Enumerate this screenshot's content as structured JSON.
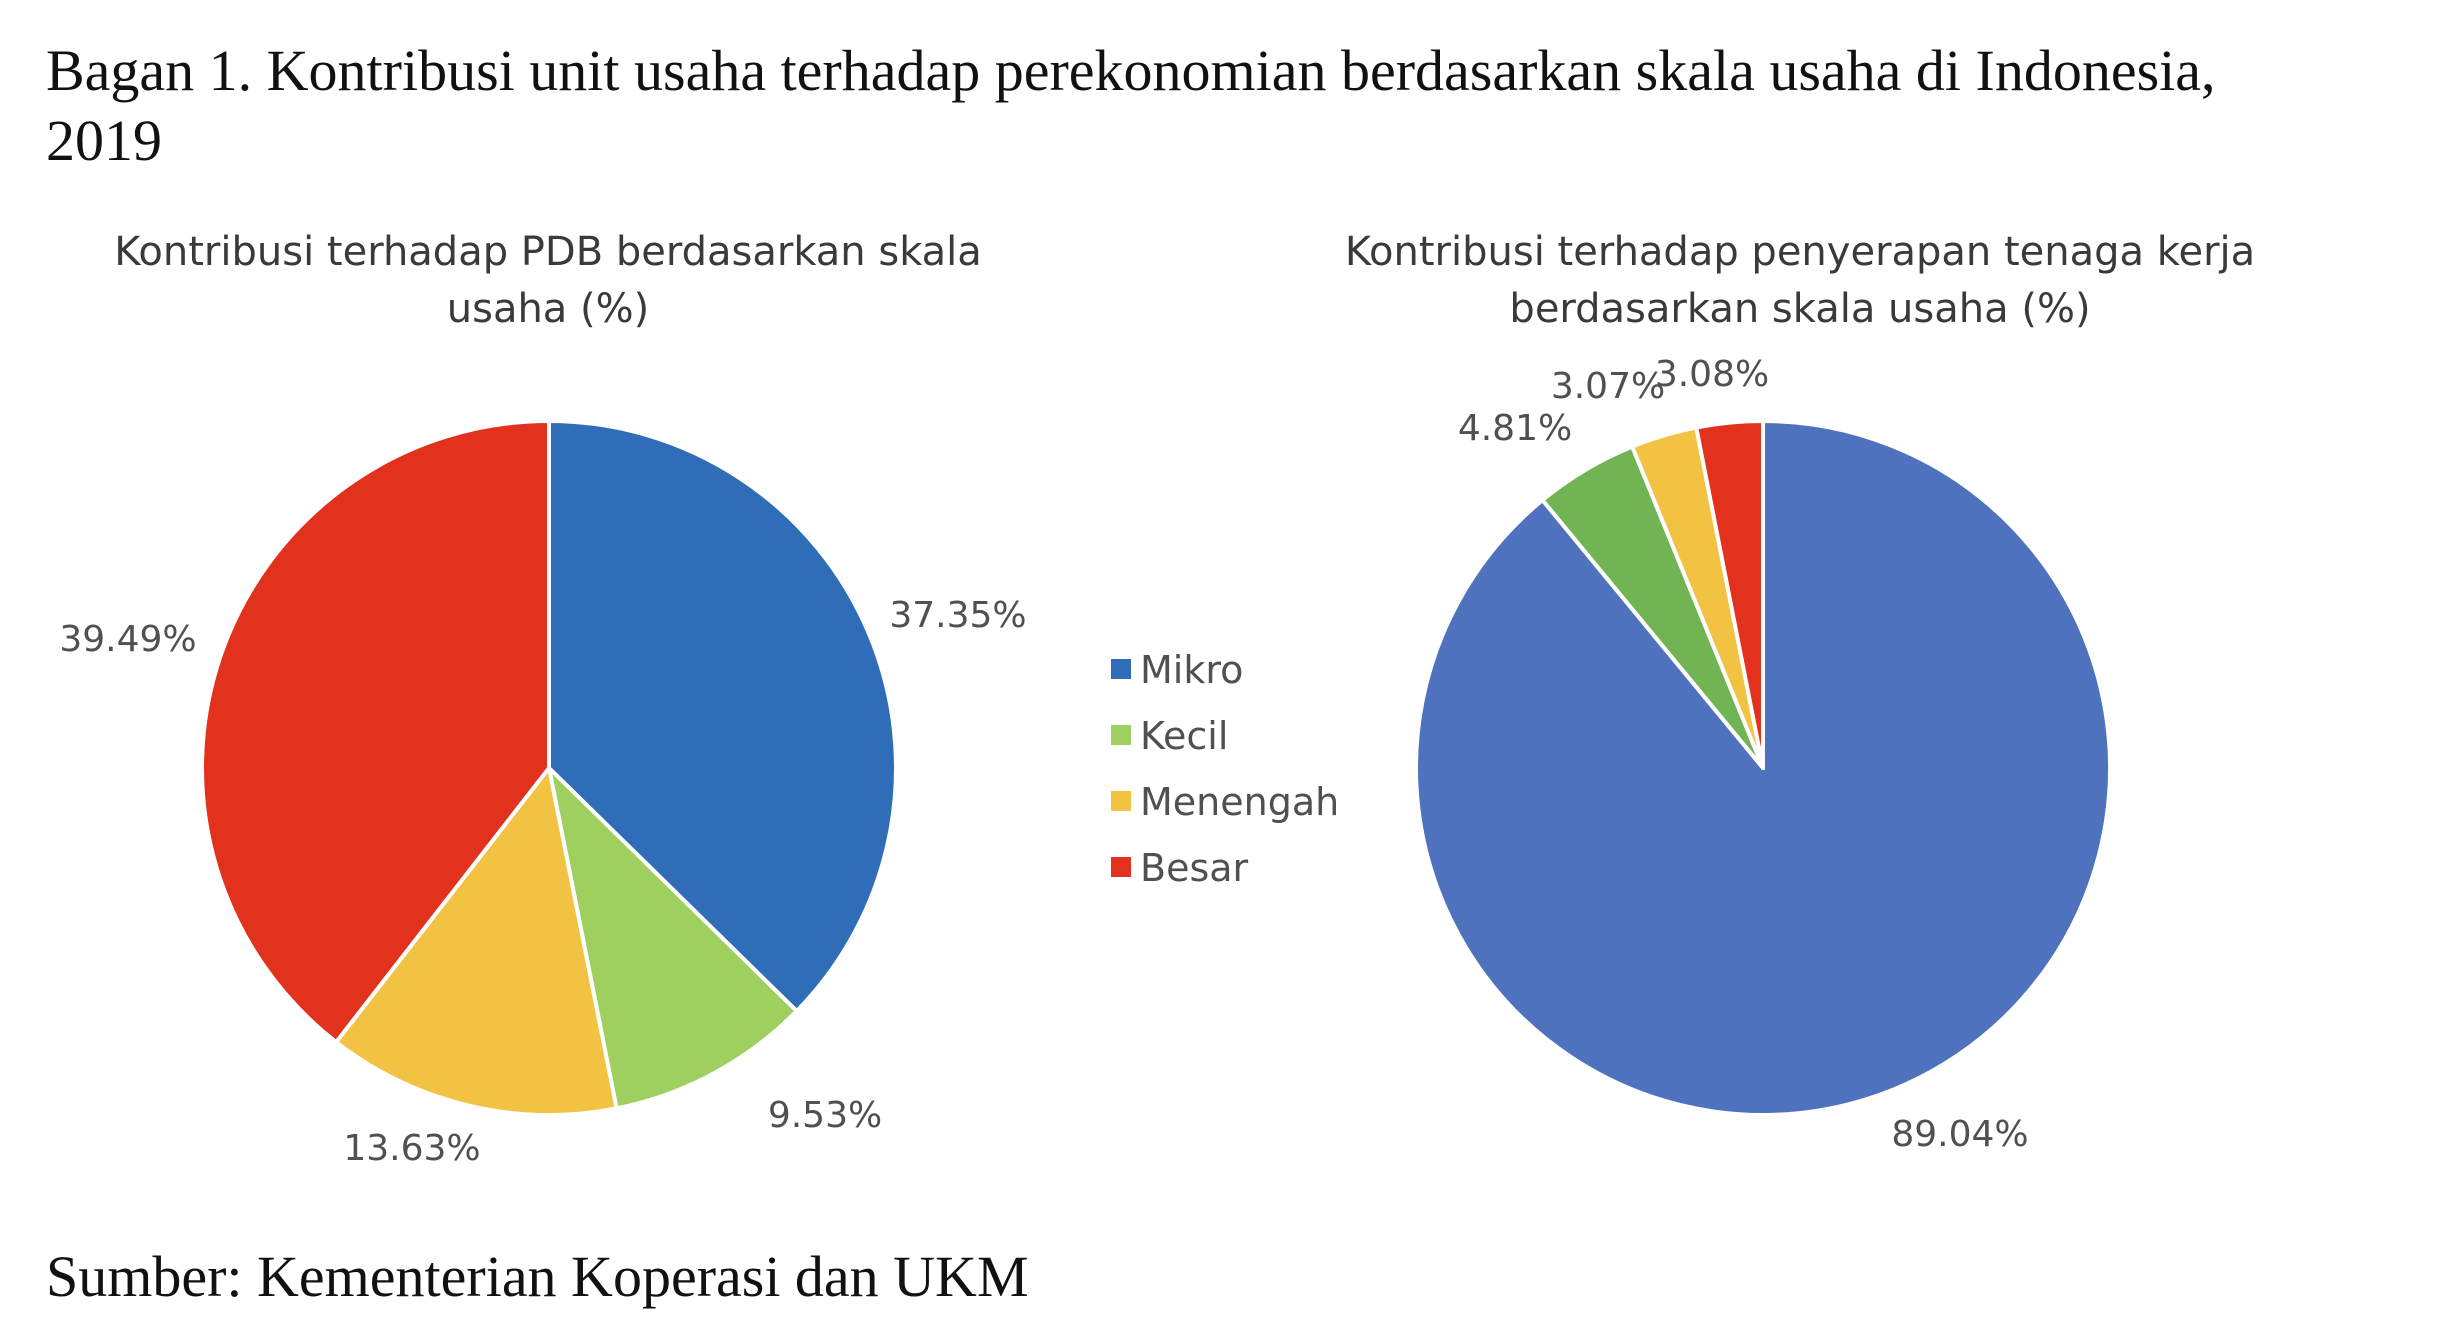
{
  "figure": {
    "title_line1": "Bagan 1. Kontribusi unit usaha terhadap perekonomian berdasarkan skala usaha di Indonesia,",
    "title_line2": "2019",
    "source": "Sumber: Kementerian Koperasi dan UKM"
  },
  "legend": {
    "items": [
      {
        "label": "Mikro",
        "color": "#2F6DB8"
      },
      {
        "label": "Kecil",
        "color": "#9ECF5F"
      },
      {
        "label": "Menengah",
        "color": "#F2C243"
      },
      {
        "label": "Besar",
        "color": "#E2311D"
      }
    ]
  },
  "chart_data": [
    {
      "type": "pie",
      "title": "Kontribusi terhadap PDB berdasarkan skala usaha (%)",
      "title_lines": [
        "Kontribusi terhadap PDB berdasarkan skala",
        "usaha (%)"
      ],
      "categories": [
        "Mikro",
        "Kecil",
        "Menengah",
        "Besar"
      ],
      "values": [
        37.35,
        9.53,
        13.63,
        39.49
      ],
      "labels": [
        "37.35%",
        "9.53%",
        "13.63%",
        "39.49%"
      ],
      "colors": [
        "#2F6DB8",
        "#9ECF5F",
        "#F2C243",
        "#E2311D"
      ],
      "legend_position": "right"
    },
    {
      "type": "pie",
      "title": "Kontribusi terhadap penyerapan tenaga kerja berdasarkan skala usaha (%)",
      "title_lines": [
        "Kontribusi terhadap penyerapan tenaga kerja",
        "berdasarkan skala usaha (%)"
      ],
      "categories": [
        "Mikro",
        "Kecil",
        "Menengah",
        "Besar"
      ],
      "values": [
        89.04,
        4.81,
        3.07,
        3.08
      ],
      "labels": [
        "89.04%",
        "4.81%",
        "3.07%",
        "3.08%"
      ],
      "colors": [
        "#4F72BE",
        "#71B453",
        "#F2C243",
        "#E2311D"
      ],
      "legend_position": "left"
    }
  ]
}
